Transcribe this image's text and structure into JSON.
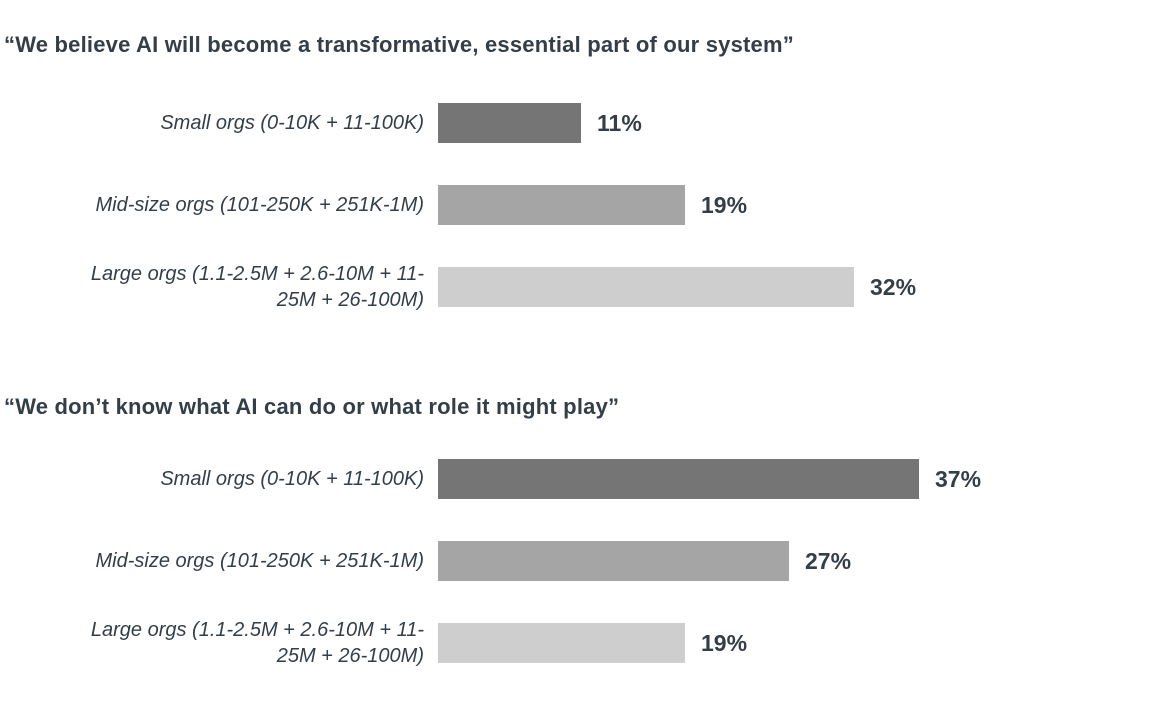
{
  "page": {
    "background": "#ffffff",
    "text_color": "#333e48"
  },
  "chart_data": [
    {
      "type": "bar",
      "orientation": "horizontal",
      "title": "“We believe AI will become a transformative, essential part of our system”",
      "categories": [
        "Small orgs (0-10K + 11-100K)",
        "Mid-size orgs (101-250K + 251K-1M)",
        "Large orgs (1.1-2.5M + 2.6-10M + 11-25M + 26-100M)"
      ],
      "values": [
        11,
        19,
        32
      ],
      "value_labels": [
        "11%",
        "19%",
        "32%"
      ],
      "bar_colors": [
        "#757575",
        "#a5a5a5",
        "#cecece"
      ],
      "xlim": [
        0,
        40
      ],
      "grid": false,
      "legend": "none",
      "axes": "hidden",
      "xlabel": "",
      "ylabel": ""
    },
    {
      "type": "bar",
      "orientation": "horizontal",
      "title": "“We don’t know what AI can do or what role it might play”",
      "categories": [
        "Small orgs (0-10K + 11-100K)",
        "Mid-size orgs (101-250K + 251K-1M)",
        "Large orgs (1.1-2.5M + 2.6-10M + 11-25M + 26-100M)"
      ],
      "values": [
        37,
        27,
        19
      ],
      "value_labels": [
        "37%",
        "27%",
        "19%"
      ],
      "bar_colors": [
        "#757575",
        "#a5a5a5",
        "#cecece"
      ],
      "xlim": [
        0,
        40
      ],
      "grid": false,
      "legend": "none",
      "axes": "hidden",
      "xlabel": "",
      "ylabel": ""
    }
  ]
}
